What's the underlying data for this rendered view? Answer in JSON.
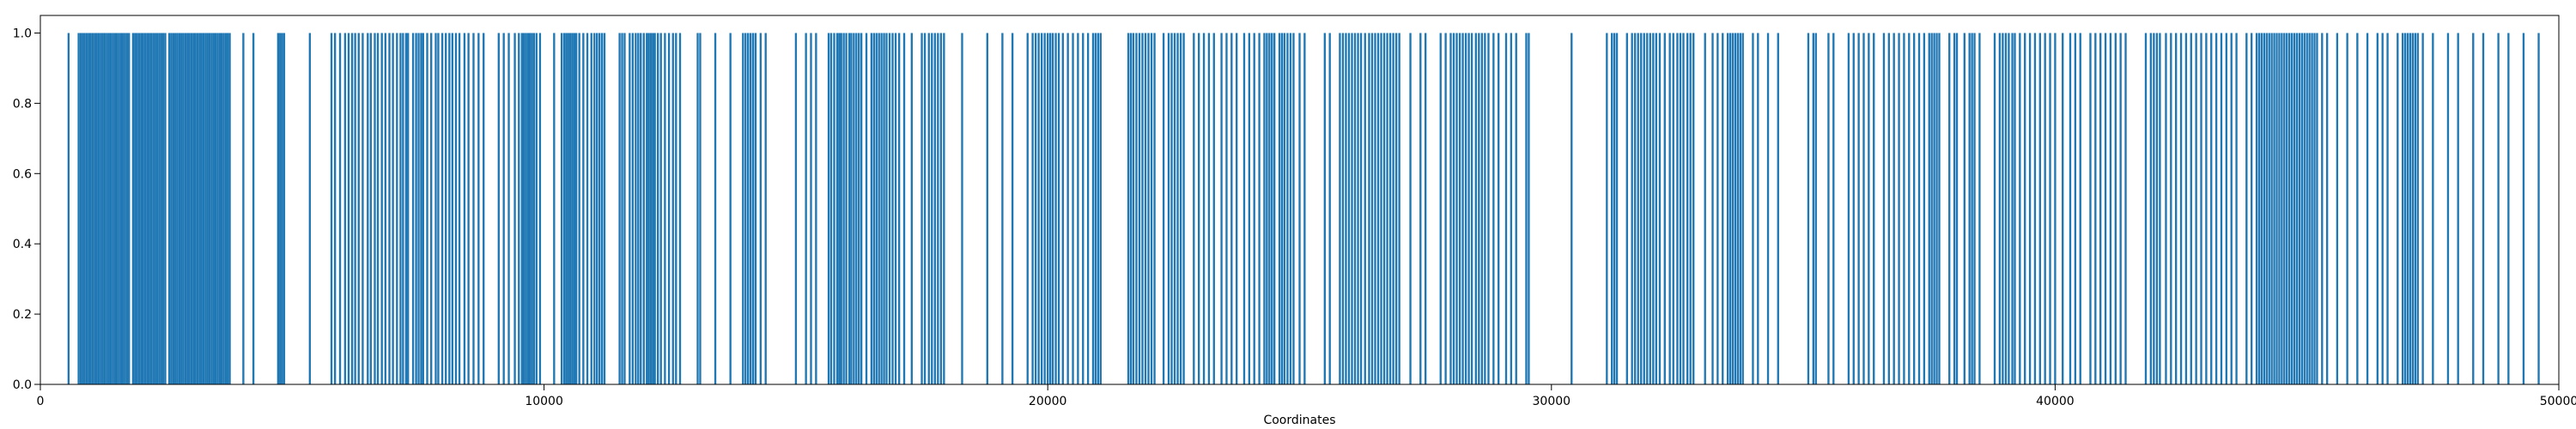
{
  "chart_data": {
    "type": "bar",
    "title": "",
    "xlabel": "Coordinates",
    "ylabel": "",
    "xlim": [
      0,
      50000
    ],
    "ylim": [
      0,
      1.05
    ],
    "xticks": [
      0,
      10000,
      20000,
      30000,
      40000,
      50000
    ],
    "yticks": [
      0.0,
      0.2,
      0.4,
      0.6,
      0.8,
      1.0
    ],
    "xtick_labels": [
      "0",
      "10000",
      "20000",
      "30000",
      "40000",
      "50000"
    ],
    "ytick_labels": [
      "0.0",
      "0.2",
      "0.4",
      "0.6",
      "0.8",
      "1.0"
    ],
    "grid": false,
    "legend": "none",
    "bar_color": "#1f77b4",
    "series": [
      {
        "values_note_free": true,
        "x": [
          560,
          760,
          800,
          840,
          880,
          920,
          960,
          1000,
          1040,
          1080,
          1120,
          1160,
          1200,
          1240,
          1280,
          1320,
          1360,
          1400,
          1440,
          1480,
          1520,
          1560,
          1600,
          1640,
          1680,
          1720,
          1760,
          1840,
          1880,
          1920,
          1960,
          2000,
          2040,
          2080,
          2120,
          2160,
          2200,
          2240,
          2280,
          2320,
          2360,
          2400,
          2440,
          2480,
          2560,
          2600,
          2640,
          2680,
          2720,
          2760,
          2800,
          2840,
          2880,
          2920,
          2960,
          3000,
          3040,
          3080,
          3120,
          3160,
          3200,
          3240,
          3280,
          3320,
          3360,
          3400,
          3440,
          3480,
          3520,
          3560,
          3600,
          3640,
          3680,
          3720,
          3760,
          4030,
          4230,
          4720,
          4760,
          4800,
          4840,
          5350,
          5780,
          5850,
          5950,
          6050,
          6120,
          6190,
          6250,
          6320,
          6400,
          6500,
          6560,
          6640,
          6700,
          6780,
          6850,
          6930,
          7000,
          7080,
          7150,
          7200,
          7260,
          7300,
          7400,
          7460,
          7510,
          7560,
          7600,
          7680,
          7760,
          7850,
          7900,
          7980,
          8050,
          8120,
          8180,
          8250,
          8320,
          8420,
          8500,
          8600,
          8700,
          8800,
          9100,
          9200,
          9300,
          9420,
          9500,
          9560,
          9600,
          9640,
          9680,
          9720,
          9760,
          9800,
          9850,
          9920,
          10200,
          10350,
          10400,
          10440,
          10480,
          10520,
          10560,
          10600,
          10640,
          10700,
          10780,
          10860,
          10940,
          11000,
          11050,
          11100,
          11150,
          11200,
          11500,
          11550,
          11600,
          11700,
          11760,
          11820,
          11870,
          11920,
          11980,
          12040,
          12080,
          12120,
          12160,
          12200,
          12260,
          12320,
          12400,
          12480,
          12560,
          12620,
          12700,
          13050,
          13100,
          13400,
          13700,
          13950,
          14000,
          14050,
          14100,
          14150,
          14200,
          14300,
          14400,
          15000,
          15200,
          15300,
          15400,
          15650,
          15700,
          15760,
          15820,
          15860,
          15900,
          15950,
          16000,
          16060,
          16100,
          16150,
          16200,
          16250,
          16300,
          16400,
          16500,
          16550,
          16600,
          16650,
          16700,
          16750,
          16800,
          16860,
          16920,
          16980,
          17050,
          17150,
          17300,
          17500,
          17560,
          17640,
          17700,
          17760,
          17820,
          17880,
          17940,
          18300,
          18800,
          19100,
          19300,
          19600,
          19700,
          19760,
          19820,
          19880,
          19940,
          20000,
          20050,
          20100,
          20160,
          20220,
          20300,
          20400,
          20500,
          20600,
          20700,
          20800,
          20900,
          20950,
          21000,
          21050,
          21600,
          21650,
          21700,
          21760,
          21820,
          21880,
          21940,
          22000,
          22060,
          22120,
          22300,
          22400,
          22460,
          22520,
          22580,
          22640,
          22700,
          22900,
          23000,
          23100,
          23200,
          23300,
          23450,
          23550,
          23650,
          23750,
          23900,
          24000,
          24100,
          24200,
          24300,
          24350,
          24400,
          24450,
          24500,
          24600,
          24650,
          24700,
          24760,
          24820,
          24880,
          25000,
          25100,
          25500,
          25600,
          25800,
          25860,
          25920,
          25980,
          26040,
          26100,
          26160,
          26220,
          26300,
          26380,
          26440,
          26500,
          26560,
          26620,
          26680,
          26740,
          26800,
          26860,
          26920,
          26980,
          27200,
          27400,
          27500,
          27800,
          27900,
          28000,
          28060,
          28120,
          28180,
          28240,
          28300,
          28360,
          28420,
          28500,
          28560,
          28620,
          28680,
          28750,
          28850,
          28950,
          29100,
          29200,
          29300,
          29500,
          29550,
          30400,
          31100,
          31200,
          31250,
          31300,
          31500,
          31600,
          31660,
          31720,
          31780,
          31840,
          31900,
          31960,
          32020,
          32080,
          32150,
          32250,
          32350,
          32420,
          32500,
          32560,
          32620,
          32700,
          32760,
          32820,
          33050,
          33200,
          33300,
          33400,
          33500,
          33550,
          33600,
          33650,
          33700,
          33750,
          33800,
          34000,
          34100,
          34300,
          34500,
          35100,
          35200,
          35250,
          35500,
          35600,
          35900,
          36000,
          36100,
          36200,
          36300,
          36400,
          36600,
          36700,
          36800,
          36900,
          37000,
          37100,
          37200,
          37300,
          37400,
          37500,
          37550,
          37600,
          37650,
          37700,
          37900,
          38000,
          38050,
          38200,
          38300,
          38350,
          38400,
          38500,
          38800,
          38900,
          38960,
          39020,
          39080,
          39150,
          39200,
          39300,
          39400,
          39500,
          39600,
          39700,
          39800,
          39900,
          40000,
          40150,
          40300,
          40400,
          40500,
          40700,
          40800,
          40900,
          41000,
          41100,
          41200,
          41300,
          41400,
          41800,
          41900,
          41960,
          42020,
          42080,
          42200,
          42300,
          42400,
          42500,
          42600,
          42700,
          42800,
          42900,
          43000,
          43100,
          43200,
          43300,
          43400,
          43500,
          43600,
          43800,
          43900,
          44000,
          44050,
          44100,
          44150,
          44200,
          44250,
          44300,
          44350,
          44400,
          44450,
          44500,
          44550,
          44600,
          44650,
          44700,
          44750,
          44800,
          44850,
          44900,
          44950,
          45000,
          45050,
          45100,
          45150,
          45200,
          45300,
          45400,
          45600,
          45800,
          46000,
          46200,
          46400,
          46500,
          46600,
          46800,
          46900,
          46950,
          47000,
          47050,
          47100,
          47150,
          47200,
          47300,
          47500,
          47800,
          48000,
          48300,
          48500,
          48800,
          49000,
          49300,
          49600
        ],
        "values_all": 1
      }
    ]
  }
}
